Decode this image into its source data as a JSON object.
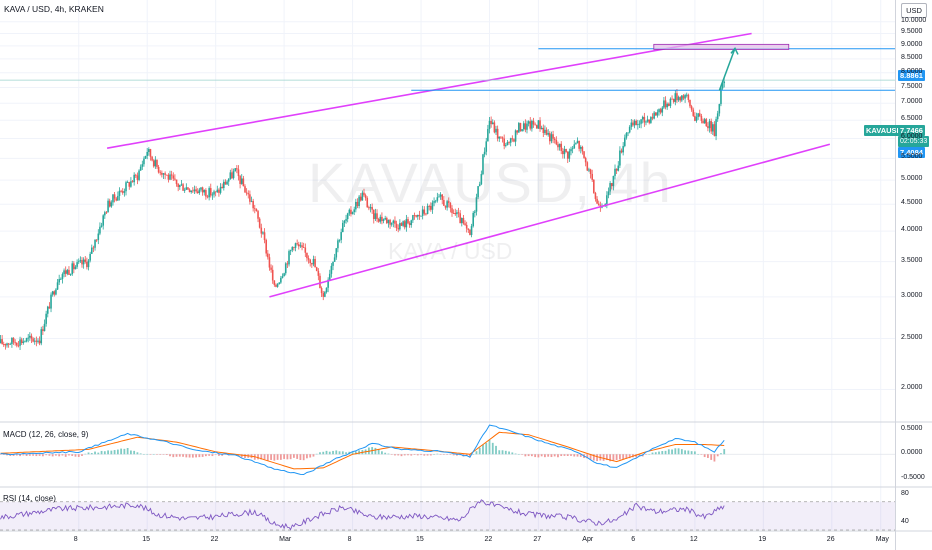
{
  "header": {
    "symbol_line": "KAVA / USD, 4h, KRAKEN",
    "currency_button": "USD"
  },
  "watermark": {
    "big": "KAVAUSD, 4h",
    "small": "KAVA / USD"
  },
  "colors": {
    "up": "#26a69a",
    "down": "#ef5350",
    "channel": "#e040fb",
    "levels": "#2196f3",
    "target_box": "#e1bee7",
    "macd": "#2196f3",
    "signal": "#ff6d00",
    "rsi": "#7e57c2"
  },
  "price_tags": {
    "target": "8.8861",
    "current_symbol": "KAVAUSD",
    "current_price": "7.7466",
    "countdown": "02:05:33",
    "resistance": "7.4084"
  },
  "panels": {
    "macd_label": "MACD (12, 26, close, 9)",
    "rsi_label": "RSI (14, close)"
  },
  "chart_data": [
    {
      "type": "candlestick",
      "title": "KAVA / USD, 4h, KRAKEN",
      "yscale": "log",
      "ylim": [
        1.75,
        11
      ],
      "y_ticks": [
        2.0,
        2.5,
        3.0,
        3.5,
        4.0,
        4.5,
        5.0,
        5.5,
        6.0,
        6.5,
        7.0,
        7.5,
        8.0,
        8.5,
        9.0,
        9.5,
        10.0
      ],
      "y_tick_labels": [
        "2.0000",
        "2.5000",
        "3.0000",
        "3.5000",
        "4.0000",
        "4.5000",
        "5.0000",
        "5.5000",
        "6.0000",
        "6.5000",
        "7.0000",
        "7.5000",
        "8.0000",
        "8.5000",
        "9.0000",
        "9.5000",
        "10.0000"
      ],
      "x_ticks": [
        "8",
        "15",
        "22",
        "Mar",
        "8",
        "15",
        "22",
        "27",
        "Apr",
        "6",
        "12",
        "19",
        "26",
        "May"
      ],
      "x_tick_days": [
        8,
        15,
        22,
        29,
        36,
        43,
        50,
        55,
        60,
        65,
        71,
        78,
        85,
        90
      ],
      "close_path_anchors": [
        [
          0,
          2.45
        ],
        [
          4,
          2.5
        ],
        [
          6,
          3.3
        ],
        [
          8,
          3.45
        ],
        [
          9,
          3.5
        ],
        [
          11,
          4.5
        ],
        [
          14,
          5.1
        ],
        [
          15,
          5.7
        ],
        [
          16,
          5.3
        ],
        [
          18,
          4.9
        ],
        [
          20,
          4.8
        ],
        [
          22,
          4.7
        ],
        [
          24,
          5.2
        ],
        [
          26,
          4.4
        ],
        [
          27,
          3.8
        ],
        [
          28,
          3.1
        ],
        [
          29,
          3.4
        ],
        [
          30,
          3.8
        ],
        [
          32,
          3.5
        ],
        [
          33,
          3.0
        ],
        [
          35,
          4.1
        ],
        [
          37,
          4.7
        ],
        [
          38,
          4.3
        ],
        [
          41,
          4.1
        ],
        [
          43,
          4.3
        ],
        [
          45,
          4.6
        ],
        [
          47,
          4.2
        ],
        [
          48,
          3.9
        ],
        [
          49,
          5.0
        ],
        [
          50,
          6.5
        ],
        [
          51,
          6.0
        ],
        [
          52,
          5.8
        ],
        [
          53,
          6.3
        ],
        [
          55,
          6.4
        ],
        [
          57,
          5.8
        ],
        [
          58,
          5.6
        ],
        [
          59,
          5.9
        ],
        [
          60,
          5.3
        ],
        [
          61,
          4.5
        ],
        [
          62,
          4.6
        ],
        [
          63,
          5.3
        ],
        [
          64,
          6.2
        ],
        [
          65,
          6.4
        ],
        [
          66,
          6.5
        ],
        [
          67,
          6.7
        ],
        [
          68,
          7.0
        ],
        [
          69,
          7.2
        ],
        [
          70,
          7.25
        ],
        [
          71,
          6.6
        ],
        [
          72,
          6.5
        ],
        [
          73,
          6.2
        ],
        [
          73.6,
          7.3
        ],
        [
          74,
          7.75
        ]
      ],
      "channel_upper": [
        [
          10.9,
          5.75
        ],
        [
          76.8,
          9.5
        ]
      ],
      "channel_lower": [
        [
          27.5,
          3.0
        ],
        [
          84.8,
          5.85
        ]
      ],
      "horizontal_levels": [
        {
          "value": 7.4084,
          "from_day": 42
        },
        {
          "value": 7.7466
        },
        {
          "value": 8.8861,
          "from_day": 55
        }
      ],
      "target_box": {
        "x0": 66.8,
        "x1": 80.6,
        "y0": 8.86,
        "y1": 9.06
      },
      "projection_arrow": [
        [
          73.5,
          7.4
        ],
        [
          75.1,
          8.9
        ]
      ]
    },
    {
      "type": "line",
      "title": "MACD (12, 26, close, 9)",
      "ylim": [
        -0.65,
        0.62
      ],
      "y_ticks": [
        0.5,
        0,
        -0.5
      ],
      "y_tick_labels": [
        "0.5000",
        "0.0000",
        "-0.5000"
      ],
      "series": [
        {
          "name": "MACD",
          "anchors": [
            [
              0,
              0
            ],
            [
              8,
              0.05
            ],
            [
              13,
              0.42
            ],
            [
              17,
              0.25
            ],
            [
              20,
              0.08
            ],
            [
              24,
              -0.02
            ],
            [
              28,
              -0.3
            ],
            [
              31,
              -0.42
            ],
            [
              34,
              -0.12
            ],
            [
              38,
              0.22
            ],
            [
              41,
              0.1
            ],
            [
              45,
              0.06
            ],
            [
              48,
              -0.05
            ],
            [
              50,
              0.6
            ],
            [
              53,
              0.42
            ],
            [
              56,
              0.22
            ],
            [
              59,
              0.05
            ],
            [
              61,
              -0.18
            ],
            [
              63,
              -0.28
            ],
            [
              65,
              -0.08
            ],
            [
              67,
              0.15
            ],
            [
              69,
              0.32
            ],
            [
              71,
              0.25
            ],
            [
              73,
              0.05
            ],
            [
              74,
              0.3
            ]
          ]
        },
        {
          "name": "Signal",
          "anchors": [
            [
              0,
              0.02
            ],
            [
              9,
              0.1
            ],
            [
              14,
              0.35
            ],
            [
              18,
              0.25
            ],
            [
              22,
              0.05
            ],
            [
              26,
              -0.05
            ],
            [
              30,
              -0.3
            ],
            [
              33,
              -0.28
            ],
            [
              36,
              0.0
            ],
            [
              40,
              0.15
            ],
            [
              44,
              0.08
            ],
            [
              48,
              0.0
            ],
            [
              51,
              0.45
            ],
            [
              54,
              0.4
            ],
            [
              58,
              0.15
            ],
            [
              61,
              -0.05
            ],
            [
              63,
              -0.15
            ],
            [
              66,
              0.05
            ],
            [
              69,
              0.2
            ],
            [
              72,
              0.2
            ],
            [
              74,
              0.18
            ]
          ]
        }
      ]
    },
    {
      "type": "line",
      "title": "RSI (14, close)",
      "ylim": [
        30,
        88
      ],
      "y_ticks": [
        80,
        40
      ],
      "y_tick_labels": [
        "80",
        "40"
      ],
      "bands": [
        70,
        30
      ],
      "series": [
        {
          "name": "RSI",
          "anchors": [
            [
              0,
              48
            ],
            [
              6,
              60
            ],
            [
              10,
              62
            ],
            [
              14,
              66
            ],
            [
              16,
              52
            ],
            [
              19,
              46
            ],
            [
              22,
              49
            ],
            [
              26,
              56
            ],
            [
              28,
              38
            ],
            [
              30,
              34
            ],
            [
              32,
              48
            ],
            [
              35,
              62
            ],
            [
              38,
              48
            ],
            [
              43,
              50
            ],
            [
              47,
              44
            ],
            [
              49,
              72
            ],
            [
              51,
              62
            ],
            [
              54,
              52
            ],
            [
              58,
              48
            ],
            [
              61,
              40
            ],
            [
              63,
              44
            ],
            [
              65,
              64
            ],
            [
              67,
              56
            ],
            [
              70,
              60
            ],
            [
              72,
              48
            ],
            [
              74,
              64
            ]
          ]
        }
      ]
    }
  ]
}
